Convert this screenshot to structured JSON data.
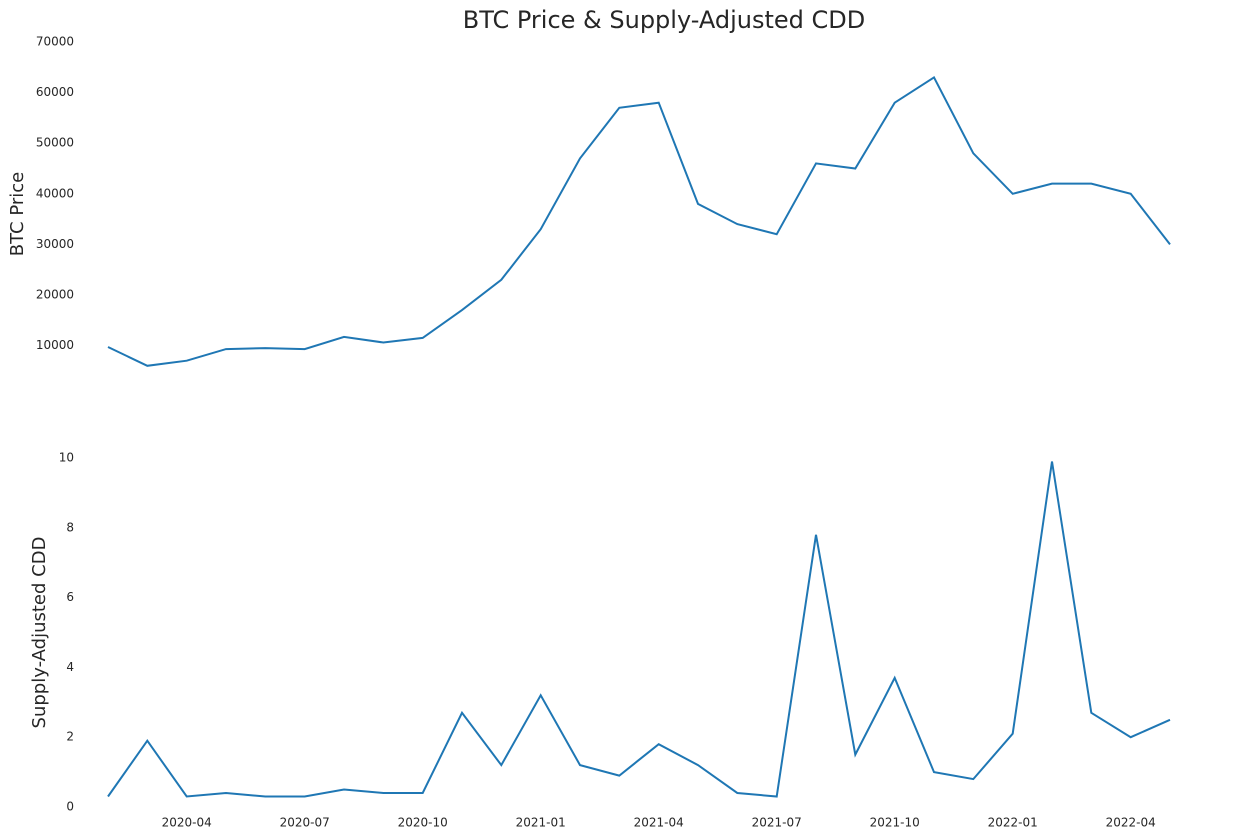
{
  "title": "BTC Price & Supply-Adjusted CDD",
  "chart_data": [
    {
      "type": "line",
      "ylabel": "BTC  Price",
      "x": [
        "2020-02",
        "2020-03",
        "2020-04",
        "2020-05",
        "2020-06",
        "2020-07",
        "2020-08",
        "2020-09",
        "2020-10",
        "2020-11",
        "2020-12",
        "2021-01",
        "2021-02",
        "2021-03",
        "2021-04",
        "2021-05",
        "2021-06",
        "2021-07",
        "2021-08",
        "2021-09",
        "2021-10",
        "2021-11",
        "2021-12",
        "2022-01",
        "2022-02",
        "2022-03",
        "2022-04",
        "2022-05"
      ],
      "series": [
        {
          "name": "BTC Price",
          "color": "#1f77b4",
          "values": [
            9700,
            6000,
            7000,
            9300,
            9500,
            9300,
            11700,
            10600,
            11500,
            17000,
            23000,
            33000,
            47000,
            57000,
            58000,
            38000,
            34000,
            32000,
            46000,
            45000,
            58000,
            63000,
            48000,
            40000,
            42000,
            42000,
            40000,
            30000
          ]
        }
      ],
      "xlim": [
        "2020-02",
        "2022-05"
      ],
      "ylim": [
        2000,
        70000
      ],
      "yticks": [
        10000,
        20000,
        30000,
        40000,
        50000,
        60000,
        70000
      ],
      "grid": false
    },
    {
      "type": "line",
      "ylabel": "Supply-Adjusted CDD",
      "x": [
        "2020-02",
        "2020-03",
        "2020-04",
        "2020-05",
        "2020-06",
        "2020-07",
        "2020-08",
        "2020-09",
        "2020-10",
        "2020-11",
        "2020-12",
        "2021-01",
        "2021-02",
        "2021-03",
        "2021-04",
        "2021-05",
        "2021-06",
        "2021-07",
        "2021-08",
        "2021-09",
        "2021-10",
        "2021-11",
        "2021-12",
        "2022-01",
        "2022-02",
        "2022-03",
        "2022-04",
        "2022-05"
      ],
      "series": [
        {
          "name": "Supply-Adjusted CDD",
          "color": "#1f77b4",
          "values": [
            0.3,
            1.9,
            0.3,
            0.4,
            0.3,
            0.3,
            0.5,
            0.4,
            0.4,
            2.7,
            1.2,
            3.2,
            1.2,
            0.9,
            1.8,
            1.2,
            0.4,
            0.3,
            7.8,
            1.5,
            3.7,
            1.0,
            0.8,
            2.1,
            9.9,
            2.7,
            2.0,
            2.5
          ]
        }
      ],
      "xlim": [
        "2020-02",
        "2022-05"
      ],
      "xticks": [
        "2020-04",
        "2020-07",
        "2020-10",
        "2021-01",
        "2021-04",
        "2021-07",
        "2021-10",
        "2022-01",
        "2022-04"
      ],
      "ylim": [
        0,
        10
      ],
      "yticks": [
        0,
        2,
        4,
        6,
        8,
        10
      ],
      "grid": false
    }
  ]
}
